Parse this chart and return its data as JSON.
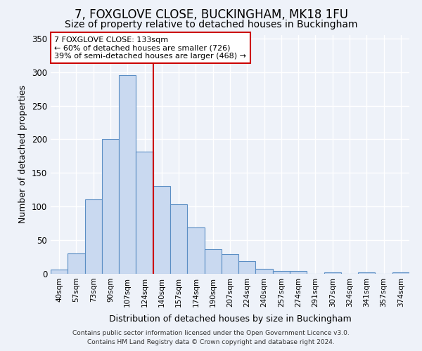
{
  "title": "7, FOXGLOVE CLOSE, BUCKINGHAM, MK18 1FU",
  "subtitle": "Size of property relative to detached houses in Buckingham",
  "xlabel": "Distribution of detached houses by size in Buckingham",
  "ylabel": "Number of detached properties",
  "bar_labels": [
    "40sqm",
    "57sqm",
    "73sqm",
    "90sqm",
    "107sqm",
    "124sqm",
    "140sqm",
    "157sqm",
    "174sqm",
    "190sqm",
    "207sqm",
    "224sqm",
    "240sqm",
    "257sqm",
    "274sqm",
    "291sqm",
    "307sqm",
    "324sqm",
    "341sqm",
    "357sqm",
    "374sqm"
  ],
  "bar_heights": [
    6,
    30,
    111,
    200,
    295,
    182,
    131,
    103,
    69,
    37,
    29,
    19,
    7,
    4,
    4,
    0,
    2,
    0,
    2,
    0,
    2
  ],
  "bar_color": "#c9d9f0",
  "bar_edge_color": "#5b8ec4",
  "vline_pos": 5.5,
  "vline_color": "#cc0000",
  "annotation_title": "7 FOXGLOVE CLOSE: 133sqm",
  "annotation_line1": "← 60% of detached houses are smaller (726)",
  "annotation_line2": "39% of semi-detached houses are larger (468) →",
  "annotation_box_color": "#ffffff",
  "annotation_box_edge": "#cc0000",
  "ylim": [
    0,
    355
  ],
  "yticks": [
    0,
    50,
    100,
    150,
    200,
    250,
    300,
    350
  ],
  "footer1": "Contains HM Land Registry data © Crown copyright and database right 2024.",
  "footer2": "Contains public sector information licensed under the Open Government Licence v3.0.",
  "bg_color": "#eef2f9",
  "grid_color": "#ffffff",
  "title_fontsize": 12,
  "subtitle_fontsize": 10,
  "tick_fontsize": 7.5,
  "ylabel_fontsize": 9,
  "xlabel_fontsize": 9,
  "footer_fontsize": 6.5
}
